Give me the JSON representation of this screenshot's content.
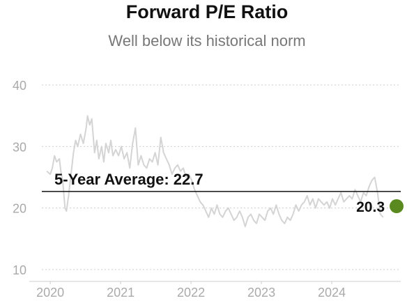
{
  "chart_data": {
    "type": "line",
    "title": "Forward P/E Ratio",
    "subtitle": "Well below its historical norm",
    "xlabel": "",
    "ylabel": "",
    "xlim": [
      2019.85,
      2024.95
    ],
    "ylim": [
      10,
      40
    ],
    "yticks": [
      "10",
      "20",
      "30",
      "40"
    ],
    "xticks": [
      "2020",
      "2021",
      "2022",
      "2023",
      "2024"
    ],
    "grid": true,
    "line_color": "#d4d4d4",
    "average_line": {
      "value": 22.7,
      "label": "5-Year Average: 22.7",
      "color": "#111111"
    },
    "last_point": {
      "x": 2024.95,
      "value": 20.3,
      "label": "20.3",
      "color": "#5a8a1f"
    },
    "series": [
      {
        "x": [
          2019.92,
          2019.97,
          2020.0,
          2020.03,
          2020.06,
          2020.1,
          2020.12,
          2020.15,
          2020.18,
          2020.2,
          2020.23,
          2020.26,
          2020.3,
          2020.33,
          2020.36,
          2020.4,
          2020.44,
          2020.48,
          2020.5,
          2020.53,
          2020.56,
          2020.6,
          2020.63,
          2020.66,
          2020.7,
          2020.73,
          2020.76,
          2020.8,
          2020.83,
          2020.86,
          2020.9,
          2020.94,
          2020.98,
          2021.02,
          2021.06,
          2021.1,
          2021.14,
          2021.18,
          2021.22,
          2021.26,
          2021.3,
          2021.34,
          2021.38,
          2021.42,
          2021.46,
          2021.5,
          2021.54,
          2021.58,
          2021.62,
          2021.66,
          2021.7,
          2021.74,
          2021.78,
          2021.82,
          2021.86,
          2021.9,
          2021.94,
          2021.98,
          2022.02,
          2022.06,
          2022.1,
          2022.14,
          2022.18,
          2022.22,
          2022.26,
          2022.3,
          2022.34,
          2022.38,
          2022.42,
          2022.46,
          2022.5,
          2022.54,
          2022.58,
          2022.62,
          2022.66,
          2022.7,
          2022.74,
          2022.78,
          2022.82,
          2022.86,
          2022.9,
          2022.94,
          2022.98,
          2023.02,
          2023.06,
          2023.1,
          2023.14,
          2023.18,
          2023.22,
          2023.26,
          2023.3,
          2023.34,
          2023.38,
          2023.42,
          2023.46,
          2023.5,
          2023.54,
          2023.58,
          2023.62,
          2023.66,
          2023.7,
          2023.74,
          2023.78,
          2023.82,
          2023.86,
          2023.9,
          2023.94,
          2023.98,
          2024.02,
          2024.06,
          2024.1,
          2024.14,
          2024.18,
          2024.22,
          2024.26,
          2024.3,
          2024.34,
          2024.38,
          2024.42,
          2024.46,
          2024.5,
          2024.54,
          2024.58,
          2024.62,
          2024.66,
          2024.7
        ],
        "values": [
          26.0,
          25.5,
          26.5,
          28.5,
          27.5,
          28.0,
          26.0,
          24.0,
          20.0,
          19.5,
          22.0,
          25.0,
          29.0,
          31.0,
          30.0,
          32.0,
          30.5,
          33.0,
          35.0,
          33.5,
          34.5,
          29.0,
          31.0,
          28.0,
          30.0,
          27.5,
          30.5,
          29.0,
          31.0,
          28.5,
          29.5,
          28.5,
          30.0,
          28.0,
          29.0,
          26.5,
          30.5,
          33.0,
          27.0,
          28.5,
          27.0,
          26.5,
          28.0,
          27.5,
          29.0,
          27.0,
          31.5,
          29.0,
          28.0,
          27.0,
          25.5,
          26.5,
          27.0,
          26.0,
          26.5,
          25.0,
          25.5,
          24.5,
          23.0,
          22.0,
          21.0,
          20.5,
          19.5,
          18.5,
          20.0,
          19.0,
          20.5,
          19.0,
          18.5,
          19.5,
          20.0,
          19.0,
          18.0,
          18.5,
          19.5,
          18.5,
          17.0,
          18.5,
          19.0,
          18.0,
          17.5,
          19.0,
          18.5,
          18.0,
          19.5,
          20.0,
          19.0,
          20.5,
          19.0,
          18.0,
          17.5,
          18.5,
          18.0,
          19.0,
          20.5,
          19.5,
          20.5,
          21.0,
          22.0,
          20.5,
          21.5,
          20.0,
          21.5,
          21.0,
          20.5,
          21.0,
          20.0,
          21.5,
          20.5,
          21.5,
          22.5,
          21.0,
          21.5,
          22.0,
          21.5,
          23.0,
          22.0,
          21.0,
          22.5,
          22.0,
          23.5,
          24.5,
          25.0,
          22.5,
          19.0,
          18.5
        ]
      }
    ]
  }
}
